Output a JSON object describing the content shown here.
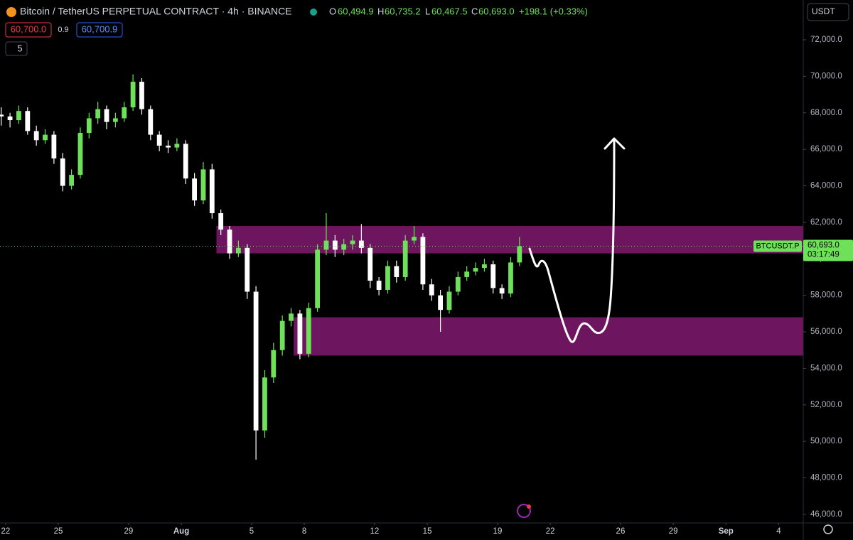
{
  "header": {
    "symbol": "Bitcoin / TetherUS PERPETUAL CONTRACT · 4h · BINANCE",
    "o_label": "O",
    "o": "60,494.9",
    "h_label": "H",
    "h": "60,735.2",
    "l_label": "L",
    "l": "60,467.5",
    "c_label": "C",
    "c": "60,693.0",
    "change": "+198.1 (+0.33%)",
    "sell": "60,700.0",
    "spread": "0.9",
    "buy": "60,700.9",
    "indicators": "5",
    "currency": "USDT"
  },
  "chart_data": {
    "type": "candlestick",
    "x": [
      -0.25,
      0.25,
      0.75,
      1.25,
      1.75,
      2.25,
      2.75,
      3.25,
      3.75,
      4.25,
      4.75,
      5.25,
      5.75,
      6.25,
      6.75,
      7.25,
      7.75,
      8.25,
      8.75,
      9.25,
      9.75,
      10.25,
      10.75,
      11.25,
      11.75,
      12.25,
      12.75,
      13.25,
      13.75,
      14.25,
      14.75,
      15.25,
      15.75,
      16.25,
      16.75,
      17.25,
      17.75,
      18.25,
      18.75,
      19.25,
      19.75,
      20.25,
      20.75,
      21.25,
      21.75,
      22.25,
      22.75,
      23.25,
      23.75,
      24.25,
      24.75,
      25.25,
      25.75,
      26.25,
      26.75,
      27.25,
      27.75,
      28.25,
      28.75,
      29.25
    ],
    "open": [
      67900,
      67800,
      67600,
      68100,
      67000,
      66500,
      66800,
      65500,
      64000,
      64600,
      66900,
      67700,
      68200,
      67500,
      67700,
      68300,
      69700,
      68200,
      66800,
      66200,
      66100,
      66300,
      64400,
      63200,
      64900,
      62500,
      61600,
      60300,
      60600,
      58200,
      50600,
      53500,
      55000,
      56600,
      57000,
      54800,
      57300,
      60500,
      61000,
      60500,
      60800,
      61000,
      60600,
      58800,
      58300,
      59600,
      59000,
      61000,
      61200,
      58600,
      58000,
      57200,
      58200,
      59000,
      59300,
      59500,
      59700,
      58400,
      58100,
      59800
    ],
    "high": [
      68300,
      68000,
      68400,
      68300,
      67300,
      67100,
      67000,
      65800,
      64900,
      67200,
      68000,
      68600,
      68400,
      68000,
      68600,
      70100,
      69900,
      68400,
      67000,
      66500,
      66600,
      66500,
      64700,
      65300,
      65200,
      62700,
      61800,
      61000,
      60800,
      58500,
      53900,
      55400,
      56900,
      57300,
      57200,
      57600,
      60800,
      62500,
      61300,
      61100,
      61300,
      61900,
      60800,
      59000,
      59900,
      59900,
      61300,
      61800,
      61400,
      58900,
      58300,
      58500,
      59300,
      59600,
      59800,
      60000,
      59900,
      58600,
      60100,
      61200
    ],
    "low": [
      67300,
      67200,
      67400,
      66800,
      66200,
      66300,
      65200,
      63700,
      63800,
      64400,
      66600,
      67400,
      67100,
      67200,
      67500,
      68100,
      67900,
      66500,
      65900,
      65800,
      65900,
      64100,
      62900,
      63000,
      62200,
      61300,
      60000,
      60100,
      57800,
      49000,
      50200,
      53200,
      54700,
      56300,
      54500,
      54600,
      57100,
      60200,
      60100,
      60200,
      60500,
      60300,
      58400,
      58000,
      58100,
      58700,
      58800,
      60800,
      58300,
      57700,
      56000,
      57000,
      58000,
      58800,
      59100,
      59300,
      58100,
      57800,
      57900,
      59600
    ],
    "close": [
      67800,
      67600,
      68100,
      67000,
      66500,
      66800,
      65500,
      64000,
      64600,
      66900,
      67700,
      68200,
      67500,
      67700,
      68300,
      69700,
      68200,
      66800,
      66200,
      66100,
      66300,
      64400,
      63200,
      64900,
      62500,
      61600,
      60300,
      60600,
      58200,
      50600,
      53500,
      55000,
      56600,
      57000,
      54800,
      57300,
      60500,
      61000,
      60500,
      60800,
      61000,
      60600,
      58800,
      58300,
      59600,
      59000,
      61000,
      61200,
      58600,
      58000,
      57200,
      58200,
      59000,
      59300,
      59500,
      59700,
      58400,
      58100,
      59800,
      60693
    ],
    "up_color": "#6ee05a",
    "down_color": "#ffffff",
    "zones": [
      {
        "y0": 60300,
        "y1": 61800,
        "x0": 12.0,
        "color": "#6e1560"
      },
      {
        "y0": 54700,
        "y1": 56800,
        "x0": 16.4,
        "color": "#6e1560"
      }
    ],
    "last_price": {
      "value": 60693,
      "label": "60,693.0"
    },
    "last_tag": "BTCUSDT.P",
    "countdown": "03:17:49",
    "xlim": [
      -0.32,
      45.4
    ],
    "ylim": [
      45530,
      74180
    ],
    "xticks": [
      {
        "value": 0,
        "label": "22"
      },
      {
        "value": 3,
        "label": "25"
      },
      {
        "value": 7,
        "label": "29"
      },
      {
        "value": 10,
        "label": "Aug"
      },
      {
        "value": 14,
        "label": "5"
      },
      {
        "value": 17,
        "label": "8"
      },
      {
        "value": 21,
        "label": "12"
      },
      {
        "value": 24,
        "label": "15"
      },
      {
        "value": 28,
        "label": "19"
      },
      {
        "value": 31,
        "label": "22"
      },
      {
        "value": 35,
        "label": "26"
      },
      {
        "value": 38,
        "label": "29"
      },
      {
        "value": 41,
        "label": "Sep"
      },
      {
        "value": 44,
        "label": "4"
      }
    ],
    "yticks": [
      {
        "value": 46000,
        "label": "46,000.0"
      },
      {
        "value": 48000,
        "label": "48,000.0"
      },
      {
        "value": 50000,
        "label": "50,000.0"
      },
      {
        "value": 52000,
        "label": "52,000.0"
      },
      {
        "value": 54000,
        "label": "54,000.0"
      },
      {
        "value": 56000,
        "label": "56,000.0"
      },
      {
        "value": 58000,
        "label": "58,000.0"
      },
      {
        "value": 60000,
        "label": "60,000.0"
      },
      {
        "value": 62000,
        "label": "62,000.0"
      },
      {
        "value": 64000,
        "label": "64,000.0"
      },
      {
        "value": 66000,
        "label": "66,000.0"
      },
      {
        "value": 68000,
        "label": "68,000.0"
      },
      {
        "value": 70000,
        "label": "70,000.0"
      },
      {
        "value": 72000,
        "label": "72,000.0"
      }
    ]
  }
}
